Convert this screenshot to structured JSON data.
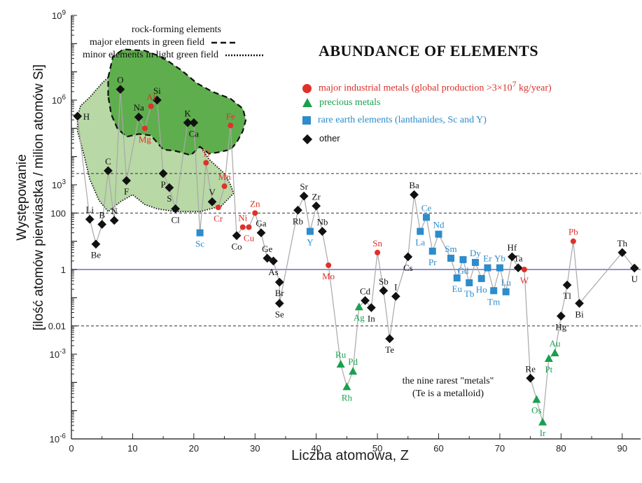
{
  "chart_data": {
    "type": "scatter",
    "title": "ABUNDANCE OF  ELEMENTS",
    "xlabel": "Liczba atomowa, Z",
    "ylabel_line1": "Występowanie",
    "ylabel_line2": "[ilość atomów pierwiastka / milion atomów Si]",
    "xlim": [
      0,
      93
    ],
    "ylim_log10": [
      -6,
      9
    ],
    "x_ticks": [
      "0",
      "10",
      "20",
      "30",
      "40",
      "50",
      "60",
      "70",
      "80",
      "90"
    ],
    "y_tick_labels": [
      {
        "log": 9,
        "base": "10",
        "exp": "9"
      },
      {
        "log": 6,
        "base": "10",
        "exp": "6"
      },
      {
        "log": 3,
        "base": "10",
        "exp": "3"
      },
      {
        "log": 2,
        "text": "100"
      },
      {
        "log": 0,
        "text": "1"
      },
      {
        "log": -2,
        "text": "0.01"
      },
      {
        "log": -3,
        "base": "10",
        "exp": "-3"
      },
      {
        "log": -6,
        "base": "10",
        "exp": "-6"
      }
    ],
    "reference_lines_log10": [
      3.4,
      2,
      -2
    ],
    "unity_line_log10": 0,
    "rock_forming_note": "rock-forming elements",
    "major_note": "major elements in green field",
    "minor_note": "minor elements in light green field",
    "legend": [
      {
        "key": "major",
        "label": "major industrial metals (global production >3×10",
        "sup": "7",
        "tail": " kg/year)"
      },
      {
        "key": "precious",
        "label": "precious metals",
        "sup": "",
        "tail": ""
      },
      {
        "key": "ree",
        "label": "rare earth elements (lanthanides, Sc and Y)",
        "sup": "",
        "tail": ""
      },
      {
        "key": "other",
        "label": "other",
        "sup": "",
        "tail": ""
      }
    ],
    "rare_note_line1": "the nine rarest \"metals\"",
    "rare_note_line2": "(Te is a metalloid)",
    "colors": {
      "major": "#e0302a",
      "precious": "#1aa04e",
      "ree": "#2c8ccc",
      "other": "#111111",
      "major_field": "#5fae4e",
      "minor_field": "#b8d8a6",
      "connector": "#a8a8a8",
      "unity": "#6b6ec2"
    },
    "series": [
      [
        "H",
        1,
        5.43,
        "other",
        "r"
      ],
      [
        "Li",
        3,
        1.78,
        "other",
        "t"
      ],
      [
        "Be",
        4,
        0.9,
        "other",
        "b"
      ],
      [
        "B",
        5,
        1.6,
        "other",
        "t"
      ],
      [
        "C",
        6,
        3.5,
        "other",
        "t"
      ],
      [
        "N",
        7,
        1.74,
        "other",
        "t"
      ],
      [
        "O",
        8,
        6.38,
        "other",
        "t"
      ],
      [
        "F",
        9,
        3.15,
        "other",
        "b"
      ],
      [
        "Na",
        11,
        5.4,
        "other",
        "t"
      ],
      [
        "Mg",
        12,
        5.0,
        "major",
        "b"
      ],
      [
        "Al",
        13,
        5.78,
        "major",
        "t"
      ],
      [
        "Si",
        14,
        6.0,
        "other",
        "t"
      ],
      [
        "P",
        15,
        3.4,
        "other",
        "b"
      ],
      [
        "S",
        16,
        2.9,
        "other",
        "b"
      ],
      [
        "Cl",
        17,
        2.15,
        "other",
        "b"
      ],
      [
        "K",
        19,
        5.2,
        "other",
        "t"
      ],
      [
        "Ca",
        20,
        5.2,
        "other",
        "b"
      ],
      [
        "Sc",
        21,
        1.3,
        "ree",
        "b"
      ],
      [
        "Ti",
        22,
        3.78,
        "major",
        "t"
      ],
      [
        "V",
        23,
        2.4,
        "other",
        "t"
      ],
      [
        "Cr",
        24,
        2.2,
        "major",
        "b"
      ],
      [
        "Mn",
        25,
        2.95,
        "major",
        "t"
      ],
      [
        "Fe",
        26,
        5.1,
        "major",
        "t"
      ],
      [
        "Co",
        27,
        1.2,
        "other",
        "b"
      ],
      [
        "Ni",
        28,
        1.5,
        "major",
        "t"
      ],
      [
        "Cu",
        29,
        1.5,
        "major",
        "b"
      ],
      [
        "Zn",
        30,
        2.0,
        "major",
        "t"
      ],
      [
        "Ga",
        31,
        1.3,
        "other",
        "t"
      ],
      [
        "Ge",
        32,
        0.4,
        "other",
        "t"
      ],
      [
        "As",
        33,
        0.3,
        "other",
        "b"
      ],
      [
        "Br",
        34,
        -0.45,
        "other",
        "b"
      ],
      [
        "Se",
        34,
        -1.2,
        "other",
        "b"
      ],
      [
        "Rb",
        37,
        2.1,
        "other",
        "b"
      ],
      [
        "Sr",
        38,
        2.6,
        "other",
        "t"
      ],
      [
        "Y",
        39,
        1.35,
        "ree",
        "b"
      ],
      [
        "Zr",
        40,
        2.25,
        "other",
        "t"
      ],
      [
        "Nb",
        41,
        1.35,
        "other",
        "t"
      ],
      [
        "Mo",
        42,
        0.15,
        "major",
        "b"
      ],
      [
        "Ru",
        44,
        -3.35,
        "precious",
        "t"
      ],
      [
        "Rh",
        45,
        -4.15,
        "precious",
        "b"
      ],
      [
        "Pd",
        46,
        -3.6,
        "precious",
        "t"
      ],
      [
        "Ag",
        47,
        -1.32,
        "precious",
        "b"
      ],
      [
        "Cd",
        48,
        -1.1,
        "other",
        "t"
      ],
      [
        "In",
        49,
        -1.35,
        "other",
        "b"
      ],
      [
        "Sn",
        50,
        0.6,
        "major",
        "t"
      ],
      [
        "Sb",
        51,
        -0.75,
        "other",
        "t"
      ],
      [
        "Te",
        52,
        -2.45,
        "other",
        "b"
      ],
      [
        "I",
        53,
        -0.95,
        "other",
        "t"
      ],
      [
        "Cs",
        55,
        0.45,
        "other",
        "b"
      ],
      [
        "Ba",
        56,
        2.65,
        "other",
        "t"
      ],
      [
        "La",
        57,
        1.35,
        "ree",
        "b"
      ],
      [
        "Ce",
        58,
        1.85,
        "ree",
        "t"
      ],
      [
        "Pr",
        59,
        0.65,
        "ree",
        "b"
      ],
      [
        "Nd",
        60,
        1.25,
        "ree",
        "t"
      ],
      [
        "Sm",
        62,
        0.4,
        "ree",
        "t"
      ],
      [
        "Eu",
        63,
        -0.3,
        "ree",
        "b"
      ],
      [
        "Gd",
        64,
        0.35,
        "ree",
        "b"
      ],
      [
        "Tb",
        65,
        -0.47,
        "ree",
        "b"
      ],
      [
        "Dy",
        66,
        0.25,
        "ree",
        "t"
      ],
      [
        "Ho",
        67,
        -0.32,
        "ree",
        "b"
      ],
      [
        "Er",
        68,
        0.06,
        "ree",
        "t"
      ],
      [
        "Tm",
        69,
        -0.75,
        "ree",
        "b"
      ],
      [
        "Yb",
        70,
        0.06,
        "ree",
        "t"
      ],
      [
        "Lu",
        71,
        -0.79,
        "ree",
        "t"
      ],
      [
        "Hf",
        72,
        0.45,
        "other",
        "t"
      ],
      [
        "Ta",
        73,
        0.06,
        "other",
        "t"
      ],
      [
        "W",
        74,
        0.0,
        "major",
        "b"
      ],
      [
        "Re",
        75,
        -3.85,
        "other",
        "t"
      ],
      [
        "Os",
        76,
        -4.6,
        "precious",
        "b"
      ],
      [
        "Ir",
        77,
        -5.4,
        "precious",
        "b"
      ],
      [
        "Pt",
        78,
        -3.15,
        "precious",
        "b"
      ],
      [
        "Au",
        79,
        -2.95,
        "precious",
        "t"
      ],
      [
        "Hg",
        80,
        -1.65,
        "other",
        "b"
      ],
      [
        "Tl",
        81,
        -0.55,
        "other",
        "b"
      ],
      [
        "Pb",
        82,
        1.0,
        "major",
        "t"
      ],
      [
        "Bi",
        83,
        -1.2,
        "other",
        "b"
      ],
      [
        "Th",
        90,
        0.6,
        "other",
        "t"
      ],
      [
        "U",
        92,
        0.05,
        "other",
        "b"
      ]
    ]
  }
}
